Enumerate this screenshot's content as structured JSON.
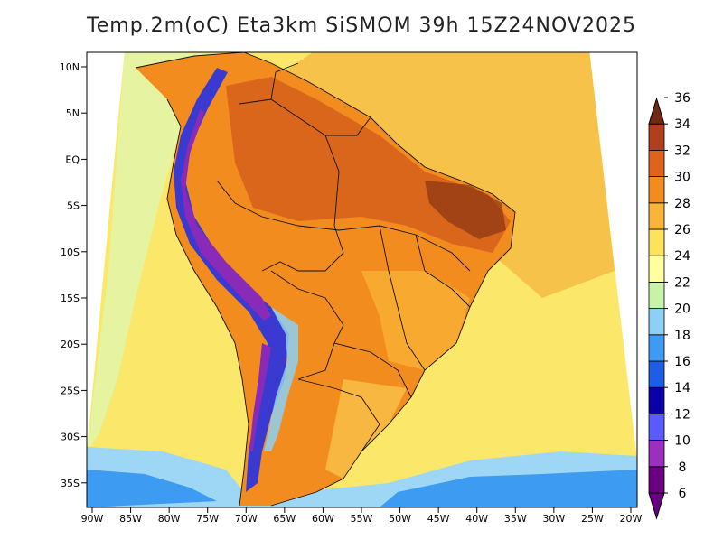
{
  "title": "Temp.2m(oC) Eta3km SiSMOM 39h 15Z24NOV2025",
  "lat_labels": [
    "10N",
    "5N",
    "EQ",
    "5S",
    "10S",
    "15S",
    "20S",
    "25S",
    "30S",
    "35S"
  ],
  "lon_labels": [
    "90W",
    "85W",
    "80W",
    "75W",
    "70W",
    "65W",
    "60W",
    "55W",
    "50W",
    "45W",
    "40W",
    "35W",
    "30W",
    "25W",
    "20W"
  ],
  "colorbar": {
    "labels": [
      "6",
      "8",
      "10",
      "12",
      "14",
      "16",
      "18",
      "20",
      "22",
      "24",
      "26",
      "28",
      "30",
      "32",
      "34",
      "36"
    ],
    "colors": [
      "#6a0080",
      "#9b30c0",
      "#5a5aff",
      "#0a00a8",
      "#1e5de6",
      "#3e9bf2",
      "#8dd0f5",
      "#c8f2a8",
      "#ffff9e",
      "#fde35a",
      "#f9b537",
      "#f28c1f",
      "#e0631b",
      "#b0401b",
      "#6e2a14"
    ]
  },
  "field_colors": {
    "ocean_warm": "#f7c24a",
    "ocean_mild": "#fbe86a",
    "ocean_cool": "#e6f3a0",
    "ocean_cold": "#9dd7f5",
    "ocean_frigid": "#3e9bf2",
    "land_hot": "#f28c1f",
    "land_veryhot": "#d15a1b",
    "land_extreme": "#8a3414",
    "andes_cold": "#3a3ad0",
    "andes_frigid": "#8a2ab8"
  }
}
